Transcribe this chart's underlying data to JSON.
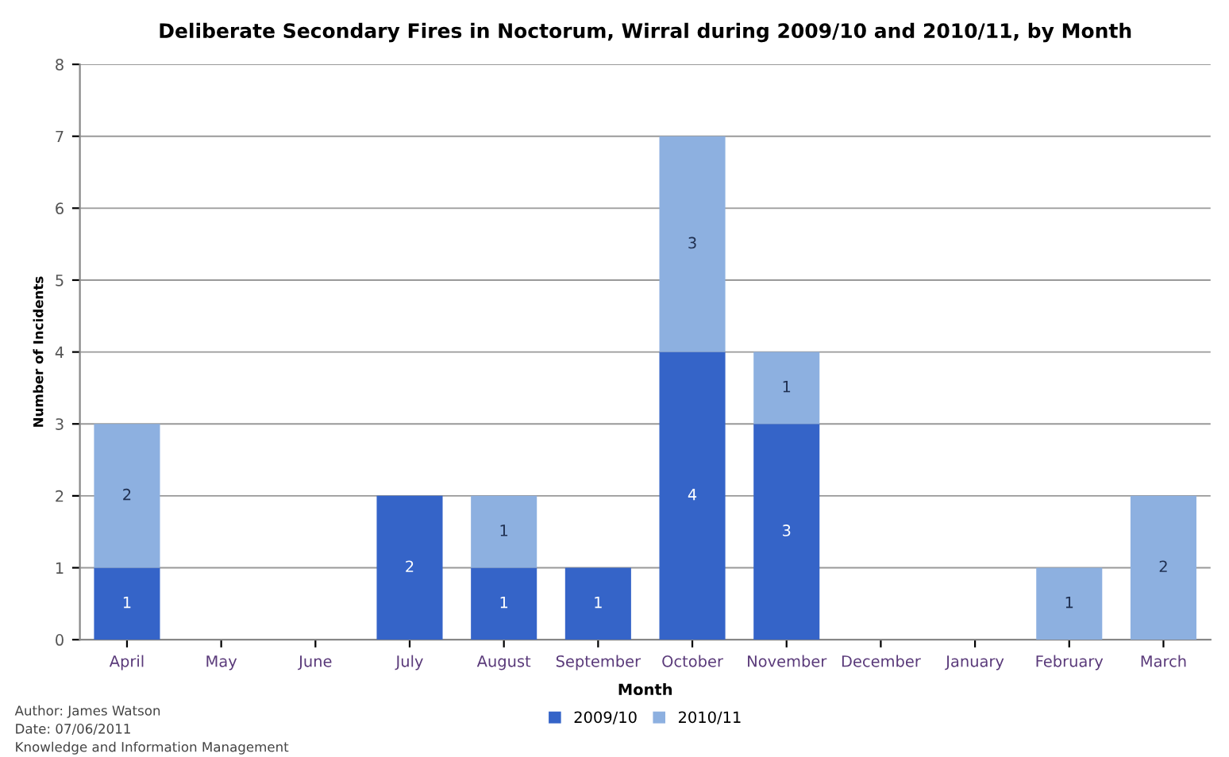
{
  "chart_data": {
    "type": "bar",
    "title": "Deliberate Secondary Fires in Noctorum, Wirral during 2009/10 and 2010/11, by Month",
    "xlabel": "Month",
    "ylabel": "Number of Incidents",
    "categories": [
      "April",
      "May",
      "June",
      "July",
      "August",
      "September",
      "October",
      "November",
      "December",
      "January",
      "February",
      "March"
    ],
    "stacked": true,
    "series": [
      {
        "name": "2009/10",
        "color": "#3564c8",
        "values": [
          1,
          0,
          0,
          2,
          1,
          1,
          4,
          3,
          0,
          0,
          0,
          0
        ],
        "value_labels": [
          "1",
          null,
          null,
          "2",
          "1",
          "1",
          "4",
          "3",
          null,
          null,
          null,
          null
        ]
      },
      {
        "name": "2010/11",
        "color": "#8db0e0",
        "values": [
          2,
          0,
          0,
          0,
          1,
          0,
          3,
          1,
          0,
          0,
          1,
          2
        ],
        "value_labels": [
          "2",
          null,
          null,
          null,
          "1",
          null,
          "3",
          "1",
          null,
          null,
          "1",
          "2"
        ]
      }
    ],
    "ylim": [
      0,
      8
    ],
    "yticks": [
      0,
      1,
      2,
      3,
      4,
      5,
      6,
      7,
      8
    ],
    "grid": "y",
    "legend": "bottom",
    "annotations": [
      "Author: James Watson",
      "Date: 07/06/2011",
      "Knowledge and Information Management"
    ]
  }
}
